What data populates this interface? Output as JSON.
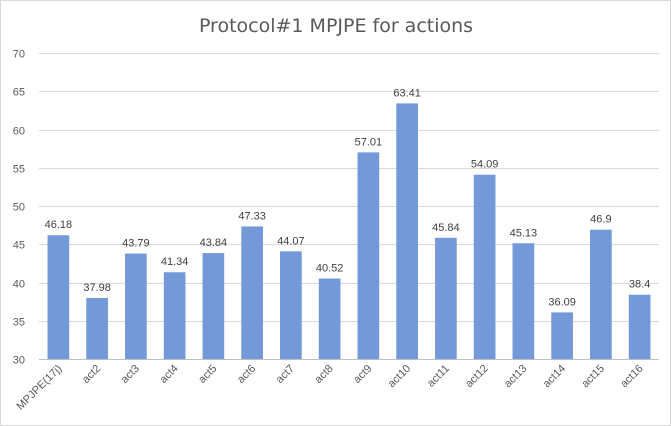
{
  "chart_data": {
    "type": "bar",
    "title": "Protocol#1 MPJPE for actions",
    "xlabel": "",
    "ylabel": "",
    "ylim": [
      30,
      70
    ],
    "yticks": [
      30,
      35,
      40,
      45,
      50,
      55,
      60,
      65,
      70
    ],
    "grid": true,
    "legend": "none",
    "bar_color": "#7399d8",
    "categories": [
      "MPJPE(17j)",
      "act2",
      "act3",
      "act4",
      "act5",
      "act6",
      "act7",
      "act8",
      "act9",
      "act10",
      "act11",
      "act12",
      "act13",
      "act14",
      "act15",
      "act16"
    ],
    "values": [
      46.18,
      37.98,
      43.79,
      41.34,
      43.84,
      47.33,
      44.07,
      40.52,
      57.01,
      63.41,
      45.84,
      54.09,
      45.13,
      36.09,
      46.9,
      38.4
    ],
    "data_labels": [
      "46.18",
      "37.98",
      "43.79",
      "41.34",
      "43.84",
      "47.33",
      "44.07",
      "40.52",
      "57.01",
      "63.41",
      "45.84",
      "54.09",
      "45.13",
      "36.09",
      "46.9",
      "38.4"
    ]
  }
}
